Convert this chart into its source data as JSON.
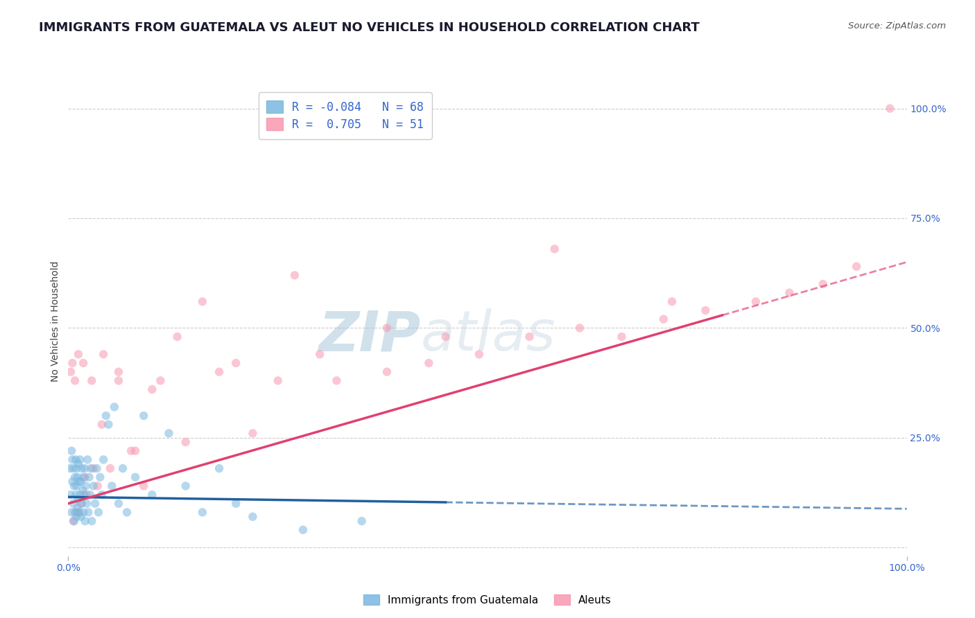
{
  "title": "IMMIGRANTS FROM GUATEMALA VS ALEUT NO VEHICLES IN HOUSEHOLD CORRELATION CHART",
  "source": "Source: ZipAtlas.com",
  "ylabel": "No Vehicles in Household",
  "xlim": [
    0,
    1
  ],
  "ylim": [
    -0.02,
    1.05
  ],
  "legend_entries": [
    {
      "label": "R = -0.084   N = 68",
      "color": "#a8c8e8"
    },
    {
      "label": "R =  0.705   N = 51",
      "color": "#f8b0c0"
    }
  ],
  "watermark_zip": "ZIP",
  "watermark_atlas": "atlas",
  "blue_color": "#7ab8e0",
  "pink_color": "#f898b0",
  "blue_line_color": "#2060a0",
  "pink_line_color": "#e04070",
  "blue_line_solid_end": 0.45,
  "pink_line_solid_end": 0.78,
  "title_fontsize": 13,
  "background_color": "#ffffff",
  "grid_color": "#cccccc",
  "blue_scatter_x": [
    0.002,
    0.003,
    0.004,
    0.004,
    0.005,
    0.005,
    0.006,
    0.006,
    0.007,
    0.007,
    0.008,
    0.008,
    0.009,
    0.009,
    0.01,
    0.01,
    0.01,
    0.011,
    0.011,
    0.012,
    0.012,
    0.013,
    0.013,
    0.014,
    0.014,
    0.015,
    0.015,
    0.016,
    0.016,
    0.017,
    0.018,
    0.018,
    0.019,
    0.02,
    0.02,
    0.021,
    0.022,
    0.023,
    0.024,
    0.025,
    0.026,
    0.027,
    0.028,
    0.03,
    0.032,
    0.034,
    0.036,
    0.038,
    0.04,
    0.042,
    0.045,
    0.048,
    0.052,
    0.055,
    0.06,
    0.065,
    0.07,
    0.08,
    0.09,
    0.1,
    0.12,
    0.14,
    0.16,
    0.18,
    0.2,
    0.22,
    0.28,
    0.35
  ],
  "blue_scatter_y": [
    0.18,
    0.12,
    0.08,
    0.22,
    0.15,
    0.2,
    0.1,
    0.18,
    0.06,
    0.14,
    0.08,
    0.16,
    0.12,
    0.2,
    0.07,
    0.14,
    0.18,
    0.09,
    0.16,
    0.11,
    0.19,
    0.08,
    0.15,
    0.12,
    0.2,
    0.07,
    0.15,
    0.1,
    0.18,
    0.13,
    0.08,
    0.16,
    0.12,
    0.06,
    0.18,
    0.14,
    0.1,
    0.2,
    0.08,
    0.16,
    0.12,
    0.18,
    0.06,
    0.14,
    0.1,
    0.18,
    0.08,
    0.16,
    0.12,
    0.2,
    0.3,
    0.28,
    0.14,
    0.32,
    0.1,
    0.18,
    0.08,
    0.16,
    0.3,
    0.12,
    0.26,
    0.14,
    0.08,
    0.18,
    0.1,
    0.07,
    0.04,
    0.06
  ],
  "pink_scatter_x": [
    0.003,
    0.005,
    0.008,
    0.01,
    0.012,
    0.015,
    0.018,
    0.022,
    0.028,
    0.035,
    0.042,
    0.05,
    0.06,
    0.075,
    0.09,
    0.11,
    0.14,
    0.18,
    0.22,
    0.27,
    0.32,
    0.38,
    0.43,
    0.49,
    0.55,
    0.61,
    0.66,
    0.71,
    0.76,
    0.82,
    0.86,
    0.9,
    0.94,
    0.98,
    0.006,
    0.012,
    0.02,
    0.03,
    0.04,
    0.06,
    0.08,
    0.1,
    0.13,
    0.16,
    0.2,
    0.25,
    0.3,
    0.38,
    0.45,
    0.58,
    0.72
  ],
  "pink_scatter_y": [
    0.4,
    0.42,
    0.38,
    0.08,
    0.44,
    0.1,
    0.42,
    0.12,
    0.38,
    0.14,
    0.44,
    0.18,
    0.4,
    0.22,
    0.14,
    0.38,
    0.24,
    0.4,
    0.26,
    0.62,
    0.38,
    0.4,
    0.42,
    0.44,
    0.48,
    0.5,
    0.48,
    0.52,
    0.54,
    0.56,
    0.58,
    0.6,
    0.64,
    1.0,
    0.06,
    0.08,
    0.16,
    0.18,
    0.28,
    0.38,
    0.22,
    0.36,
    0.48,
    0.56,
    0.42,
    0.38,
    0.44,
    0.5,
    0.48,
    0.68,
    0.56
  ],
  "blue_line_x0": 0.0,
  "blue_line_x1": 1.0,
  "blue_line_y0": 0.115,
  "blue_line_y1": 0.088,
  "pink_line_x0": 0.0,
  "pink_line_x1": 1.0,
  "pink_line_y0": 0.1,
  "pink_line_y1": 0.65
}
